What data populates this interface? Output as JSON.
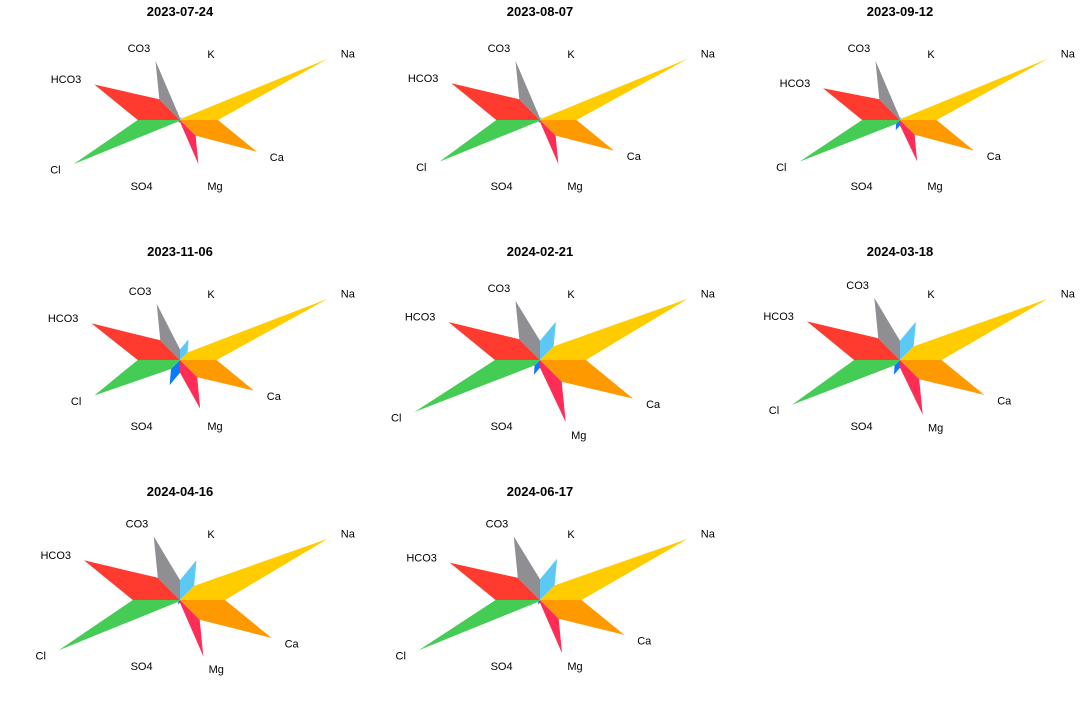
{
  "chart_data": {
    "type": "radar",
    "chart_style": "star-diagram",
    "layout": {
      "rows": 3,
      "columns": 3
    },
    "axes": [
      "K",
      "Na",
      "Ca",
      "Mg",
      "SO4",
      "Cl",
      "HCO3",
      "CO3"
    ],
    "colors": {
      "K": "#5bc8f5",
      "Na": "#ffcc00",
      "Ca": "#ff9900",
      "Mg": "#ff2d55",
      "SO4": "#0a7aff",
      "Cl": "#44cc55",
      "HCO3": "#ff3b30",
      "CO3": "#8e8e93"
    },
    "panels": [
      {
        "title": "2023-07-24",
        "values": {
          "K": 0.02,
          "Na": 1.0,
          "Ca": 0.52,
          "Mg": 0.3,
          "SO4": 0.02,
          "Cl": 0.72,
          "HCO3": 0.58,
          "CO3": 0.4
        }
      },
      {
        "title": "2023-08-07",
        "values": {
          "K": 0.02,
          "Na": 1.0,
          "Ca": 0.5,
          "Mg": 0.3,
          "SO4": 0.02,
          "Cl": 0.68,
          "HCO3": 0.6,
          "CO3": 0.4
        }
      },
      {
        "title": "2023-09-12",
        "values": {
          "K": 0.02,
          "Na": 1.0,
          "Ca": 0.5,
          "Mg": 0.28,
          "SO4": 0.07,
          "Cl": 0.68,
          "HCO3": 0.52,
          "CO3": 0.4
        }
      },
      {
        "title": "2023-11-06",
        "values": {
          "K": 0.14,
          "Na": 1.0,
          "Ca": 0.5,
          "Mg": 0.33,
          "SO4": 0.17,
          "Cl": 0.58,
          "HCO3": 0.6,
          "CO3": 0.38
        }
      },
      {
        "title": "2024-02-21",
        "values": {
          "K": 0.26,
          "Na": 1.0,
          "Ca": 0.63,
          "Mg": 0.42,
          "SO4": 0.1,
          "Cl": 0.85,
          "HCO3": 0.62,
          "CO3": 0.4
        }
      },
      {
        "title": "2024-03-18",
        "values": {
          "K": 0.26,
          "Na": 1.0,
          "Ca": 0.57,
          "Mg": 0.37,
          "SO4": 0.1,
          "Cl": 0.73,
          "HCO3": 0.63,
          "CO3": 0.42
        }
      },
      {
        "title": "2024-04-16",
        "values": {
          "K": 0.27,
          "Na": 1.0,
          "Ca": 0.62,
          "Mg": 0.38,
          "SO4": 0.03,
          "Cl": 0.82,
          "HCO3": 0.65,
          "CO3": 0.43
        }
      },
      {
        "title": "2024-06-17",
        "values": {
          "K": 0.28,
          "Na": 1.0,
          "Ca": 0.57,
          "Mg": 0.36,
          "SO4": 0.03,
          "Cl": 0.82,
          "HCO3": 0.61,
          "CO3": 0.43
        }
      }
    ]
  }
}
